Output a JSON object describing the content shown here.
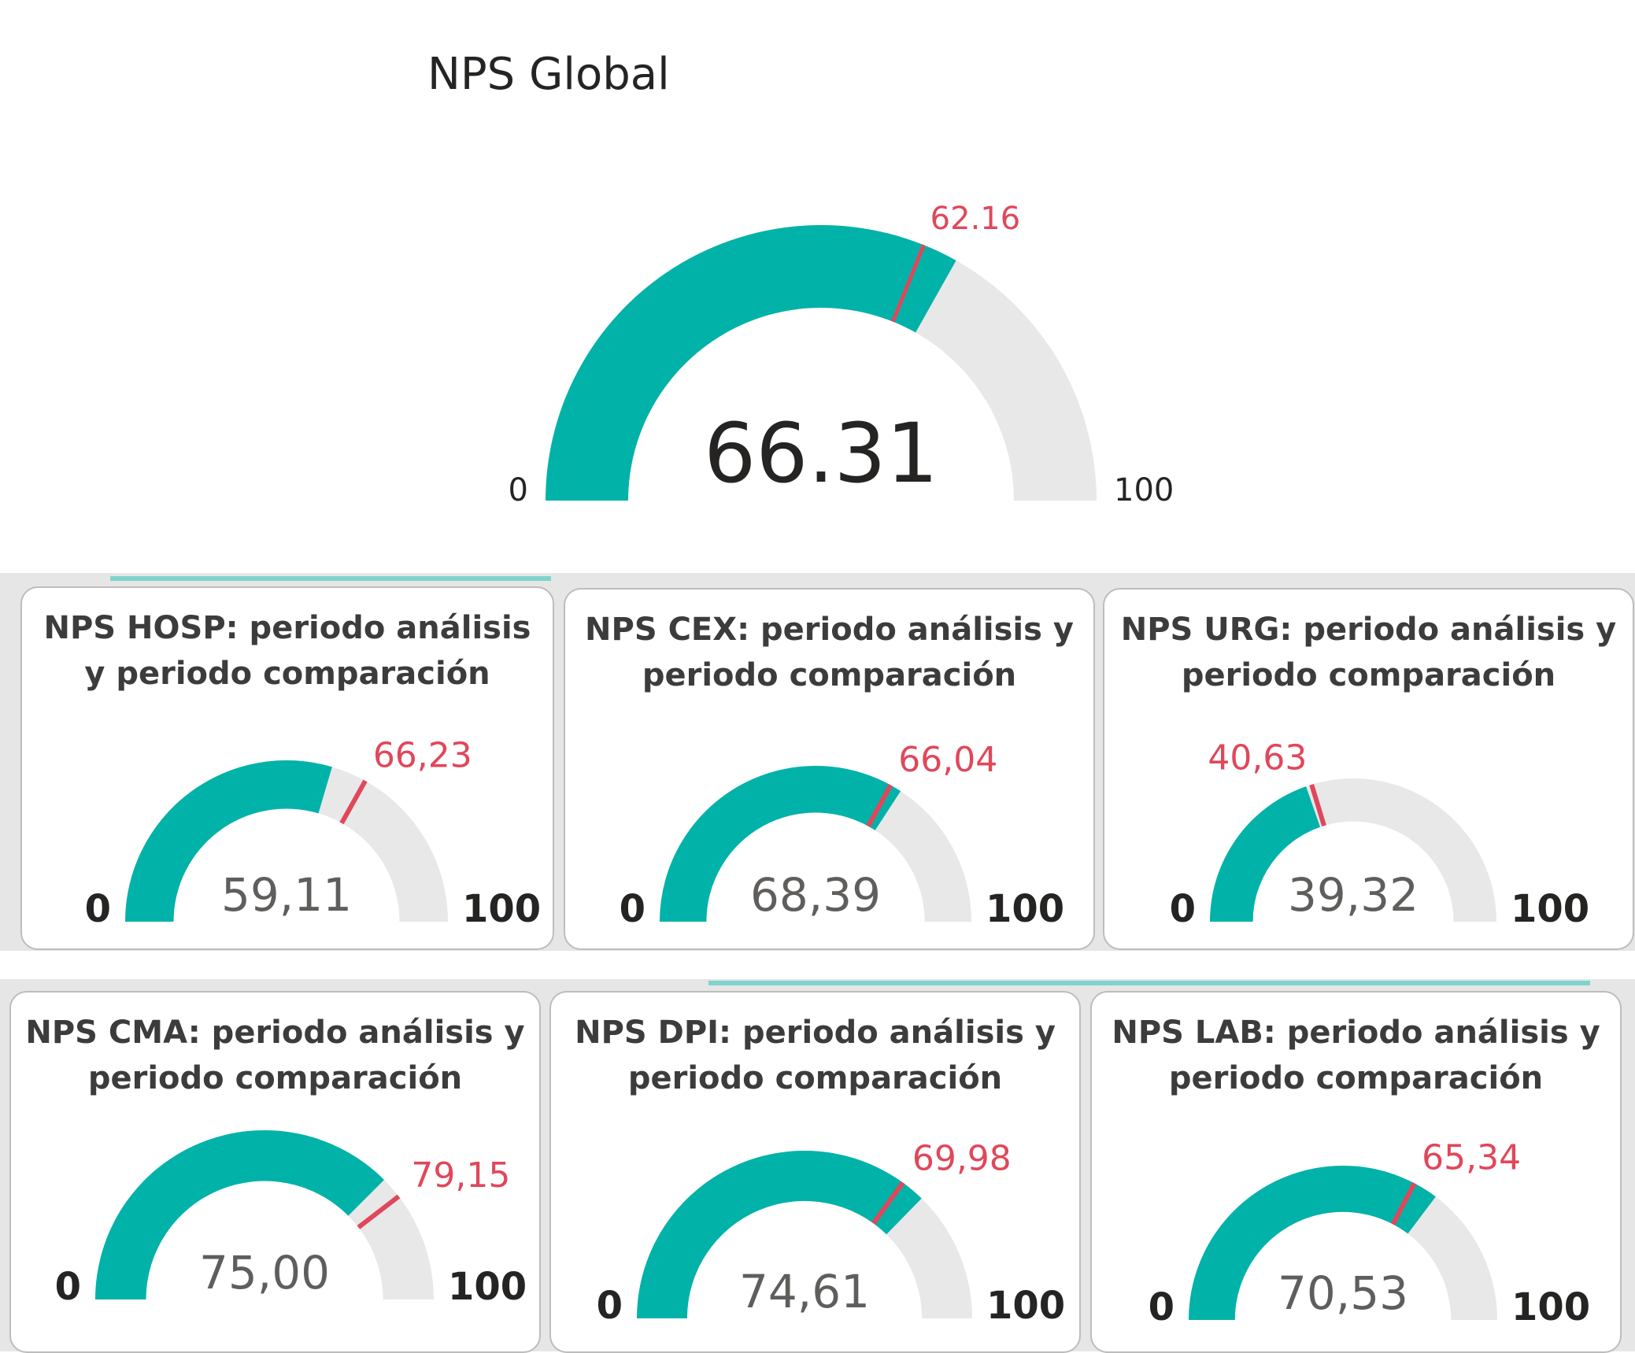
{
  "chart_data": [
    {
      "type": "gauge",
      "title": "NPS Global",
      "value": 66.31,
      "value_label": "66.31",
      "target": 62.16,
      "target_label": "62.16",
      "min": 0,
      "max": 100,
      "min_label": "0",
      "max_label": "100"
    },
    {
      "type": "gauge",
      "title": "NPS HOSP: periodo análisis y periodo comparación",
      "value": 59.11,
      "value_label": "59,11",
      "target": 66.23,
      "target_label": "66,23",
      "min": 0,
      "max": 100,
      "min_label": "0",
      "max_label": "100"
    },
    {
      "type": "gauge",
      "title": "NPS CEX: periodo análisis y periodo comparación",
      "value": 68.39,
      "value_label": "68,39",
      "target": 66.04,
      "target_label": "66,04",
      "min": 0,
      "max": 100,
      "min_label": "0",
      "max_label": "100"
    },
    {
      "type": "gauge",
      "title": "NPS URG: periodo análisis y periodo comparación",
      "value": 39.32,
      "value_label": "39,32",
      "target": 40.63,
      "target_label": "40,63",
      "min": 0,
      "max": 100,
      "min_label": "0",
      "max_label": "100"
    },
    {
      "type": "gauge",
      "title": "NPS CMA: periodo análisis y periodo comparación",
      "value": 75.0,
      "value_label": "75,00",
      "target": 79.15,
      "target_label": "79,15",
      "min": 0,
      "max": 100,
      "min_label": "0",
      "max_label": "100"
    },
    {
      "type": "gauge",
      "title": "NPS DPI: periodo análisis y periodo comparación",
      "value": 74.61,
      "value_label": "74,61",
      "target": 69.98,
      "target_label": "69,98",
      "min": 0,
      "max": 100,
      "min_label": "0",
      "max_label": "100"
    },
    {
      "type": "gauge",
      "title": "NPS LAB: periodo análisis y periodo comparación",
      "value": 70.53,
      "value_label": "70,53",
      "target": 65.34,
      "target_label": "65,34",
      "min": 0,
      "max": 100,
      "min_label": "0",
      "max_label": "100"
    }
  ],
  "colors": {
    "fill": "#01b2a9",
    "track": "#e8e8e8",
    "target": "#e0475a",
    "value_text_main": "#252423",
    "value_text_card": "#605e5c",
    "axis_text": "#252423"
  }
}
